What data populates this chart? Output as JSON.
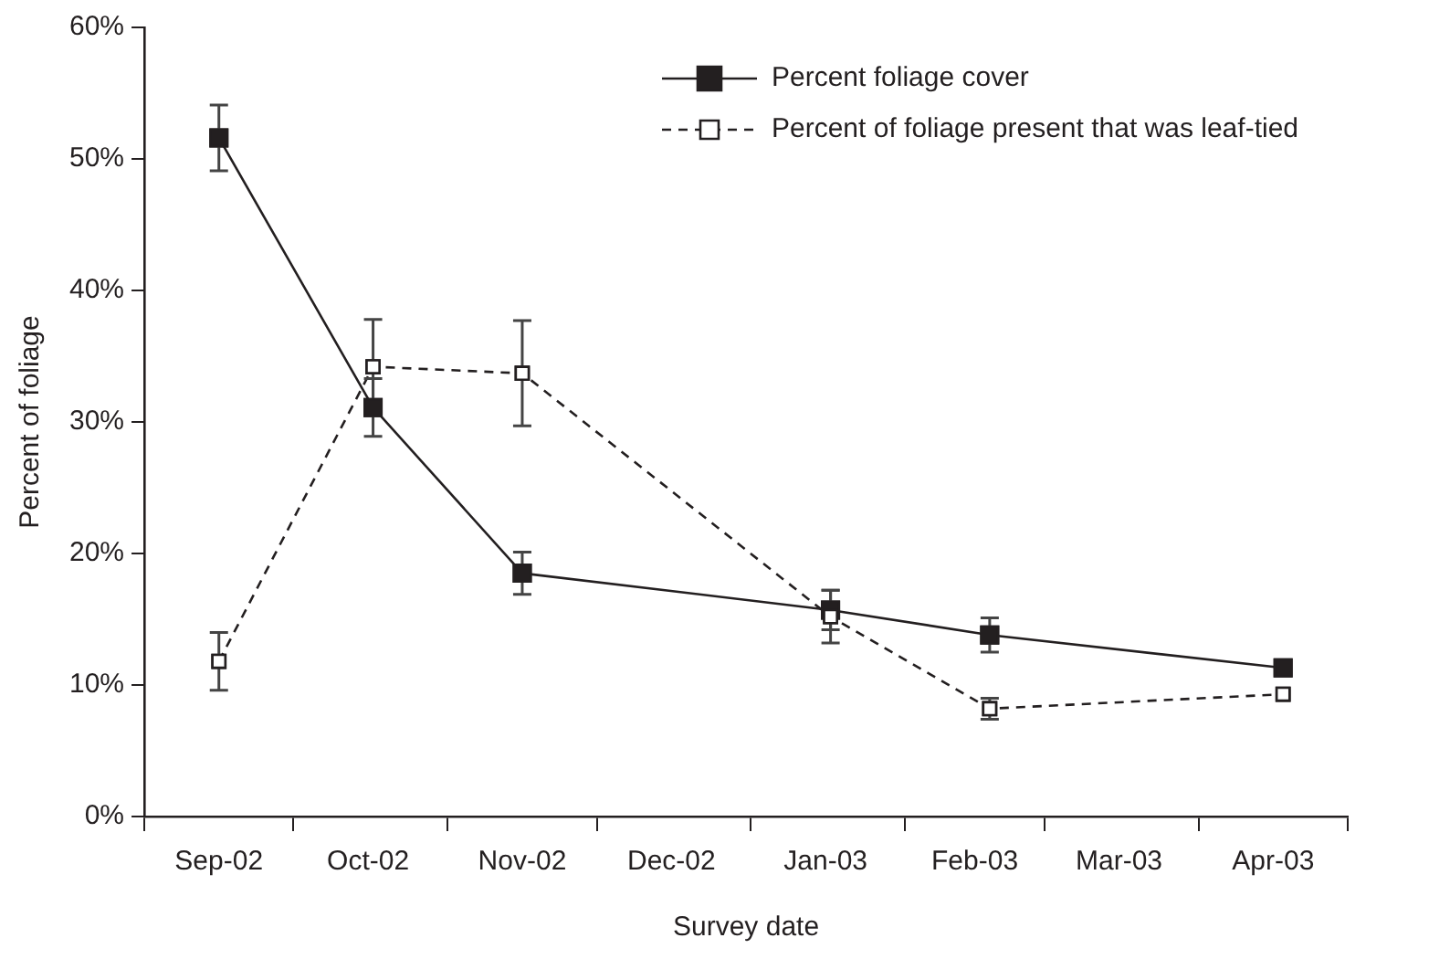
{
  "chart_data": {
    "type": "line",
    "xlabel": "Survey date",
    "ylabel": "Percent of foliage",
    "x": [
      "2002-09-16",
      "2002-10-17",
      "2002-11-16",
      "2003-01-17",
      "2003-02-18",
      "2003-04-18"
    ],
    "series": [
      {
        "name": "Percent foliage cover",
        "color": "#231f20",
        "line_style": "solid",
        "marker": "square",
        "values": [
          51.6,
          31.1,
          18.5,
          15.7,
          13.8,
          11.3
        ],
        "errors": [
          2.5,
          2.2,
          1.6,
          1.5,
          1.3,
          null
        ]
      },
      {
        "name": "Percent of foliage present that was leaf-tied",
        "color": "#231f20",
        "line_style": "dashed",
        "marker": "square",
        "values": [
          11.8,
          34.2,
          33.7,
          15.2,
          8.2,
          9.3
        ],
        "errors": [
          2.2,
          3.6,
          4,
          2,
          0.8,
          null
        ]
      }
    ],
    "xlim": [
      "2002-09-01",
      "2003-05-01"
    ],
    "xticks": [
      {
        "value": "2002-09-01",
        "label": null
      },
      {
        "value": "2002-09-16",
        "label": "Sep-02"
      },
      {
        "value": "2002-10-01",
        "label": null
      },
      {
        "value": "2002-10-16",
        "label": "Oct-02"
      },
      {
        "value": "2002-11-01",
        "label": null
      },
      {
        "value": "2002-11-16",
        "label": "Nov-02"
      },
      {
        "value": "2002-12-01",
        "label": null
      },
      {
        "value": "2002-12-16",
        "label": "Dec-02"
      },
      {
        "value": "2003-01-01",
        "label": null
      },
      {
        "value": "2003-01-16",
        "label": "Jan-03"
      },
      {
        "value": "2003-02-01",
        "label": null
      },
      {
        "value": "2003-02-15",
        "label": "Feb-03"
      },
      {
        "value": "2003-03-01",
        "label": null
      },
      {
        "value": "2003-03-16",
        "label": "Mar-03"
      },
      {
        "value": "2003-04-01",
        "label": null
      },
      {
        "value": "2003-04-16",
        "label": "Apr-03"
      },
      {
        "value": "2003-05-01",
        "label": null
      }
    ],
    "ylim": [
      0,
      60
    ],
    "yticks": [
      {
        "value": 0,
        "label": "0%"
      },
      {
        "value": 10,
        "label": "10%"
      },
      {
        "value": 20,
        "label": "20%"
      },
      {
        "value": 30,
        "label": "30%"
      },
      {
        "value": 40,
        "label": "40%"
      },
      {
        "value": 50,
        "label": "50%"
      },
      {
        "value": 60,
        "label": "60%"
      }
    ],
    "grid": false,
    "legend": "top right"
  }
}
